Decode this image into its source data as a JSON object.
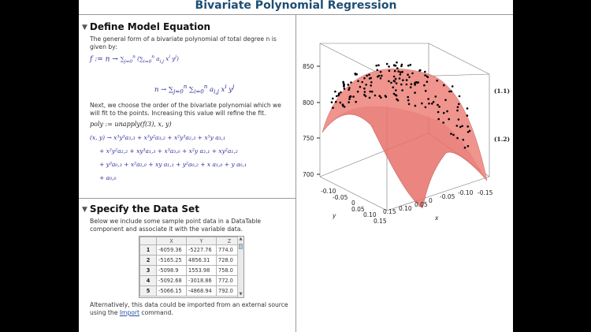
{
  "title": "Bivariate Polynomial Regression",
  "section1": {
    "heading": "Define Model Equation",
    "para1": "The general form of a bivariate polynomial of total degree n is given by:",
    "eq1_lhs": "f := n →",
    "eq1_rhs": "n → Σ Σ a i,j x^i y^j",
    "eq1_number": "(1.1)",
    "para2": "Next, we choose the order of the bivariate polynomial which we will fit to the points. Increasing this value will refine the fit.",
    "cmd": "poly := unapply(f(3), x, y)",
    "eq2_line1": "(x, y) → x³y³a₃,₃ + x³y²a₃,₂ + x²y³a₂,₃ + x³y a₃,₁",
    "eq2_line2": "+ x²y²a₂,₂ + xy³a₁,₃ + x³a₃,₀ + x²y a₂,₁ + xy²a₁,₂",
    "eq2_line3": "+ y³a₀,₃ + x²a₂,₀ + xy a₁,₁ + y²a₀,₂ + x a₁,₀ + y a₀,₁",
    "eq2_line4": "+ a₀,₀",
    "eq2_number": "(1.2)"
  },
  "section2": {
    "heading": "Specify the Data Set",
    "para1": "Below we include some sample point data in a DataTable component and associate it with the variable data.",
    "table": {
      "columns": [
        "X",
        "Y",
        "Z"
      ],
      "rows": [
        [
          "1",
          "-6059.36",
          "-5227.76",
          "774.0"
        ],
        [
          "2",
          "-5165.25",
          "4856.31",
          "728.0"
        ],
        [
          "3",
          "-5098.9",
          "1553.98",
          "758.0"
        ],
        [
          "4",
          "-5092.68",
          "-3018.86",
          "772.0"
        ],
        [
          "5",
          "-5066.15",
          "-4868.94",
          "792.0"
        ]
      ]
    },
    "para2_prefix": "Alternatively, this data could be imported from an external source using the ",
    "para2_link": "Import",
    "para2_suffix": " command."
  },
  "plot": {
    "z_ticks": [
      "850",
      "800",
      "750",
      "700"
    ],
    "y_ticks": [
      "-0.10",
      "-0.05",
      "0",
      "0.05",
      "0.10",
      "0.15"
    ],
    "x_ticks": [
      "0.15",
      "0.10",
      "0.05",
      "0",
      "-0.05",
      "-0.10",
      "-0.15"
    ],
    "y_label": "y",
    "x_label": "x",
    "surface_color": "#e8706a",
    "point_color": "#000000"
  }
}
